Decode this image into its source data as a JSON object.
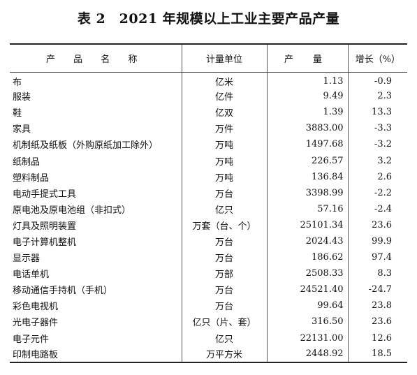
{
  "title": "表 2　2021 年规模以上工业主要产品产量",
  "table": {
    "headers": {
      "name": "产 品 名 称",
      "unit": "计量单位",
      "quantity": "产 量",
      "growth": "增长（%）"
    },
    "rows": [
      {
        "name": "布",
        "unit": "亿米",
        "quantity": "1.13",
        "growth": "-0.9"
      },
      {
        "name": "服装",
        "unit": "亿件",
        "quantity": "9.49",
        "growth": "2.3"
      },
      {
        "name": "鞋",
        "unit": "亿双",
        "quantity": "1.39",
        "growth": "13.3"
      },
      {
        "name": "家具",
        "unit": "万件",
        "quantity": "3883.00",
        "growth": "-3.3"
      },
      {
        "name": "机制纸及纸板（外购原纸加工除外）",
        "unit": "万吨",
        "quantity": "1497.68",
        "growth": "-3.2"
      },
      {
        "name": "纸制品",
        "unit": "万吨",
        "quantity": "226.57",
        "growth": "3.2"
      },
      {
        "name": "塑料制品",
        "unit": "万吨",
        "quantity": "136.84",
        "growth": "2.6"
      },
      {
        "name": "电动手提式工具",
        "unit": "万台",
        "quantity": "3398.99",
        "growth": "-2.2"
      },
      {
        "name": "原电池及原电池组（非扣式）",
        "unit": "亿只",
        "quantity": "57.16",
        "growth": "-2.4"
      },
      {
        "name": "灯具及照明装置",
        "unit": "万套（台、个）",
        "quantity": "25101.34",
        "growth": "23.6"
      },
      {
        "name": "电子计算机整机",
        "unit": "万台",
        "quantity": "2024.43",
        "growth": "99.9"
      },
      {
        "name": "显示器",
        "unit": "万台",
        "quantity": "186.62",
        "growth": "97.4"
      },
      {
        "name": "电话单机",
        "unit": "万部",
        "quantity": "2508.33",
        "growth": "8.3"
      },
      {
        "name": "移动通信手持机（手机）",
        "unit": "万台",
        "quantity": "24521.40",
        "growth": "-24.7"
      },
      {
        "name": "彩色电视机",
        "unit": "万台",
        "quantity": "99.64",
        "growth": "23.8"
      },
      {
        "name": "光电子器件",
        "unit": "亿只（片、套）",
        "quantity": "316.50",
        "growth": "23.6"
      },
      {
        "name": "电子元件",
        "unit": "亿只",
        "quantity": "22131.00",
        "growth": "12.6"
      },
      {
        "name": "印制电路板",
        "unit": "万平方米",
        "quantity": "2448.92",
        "growth": "18.5"
      }
    ]
  }
}
